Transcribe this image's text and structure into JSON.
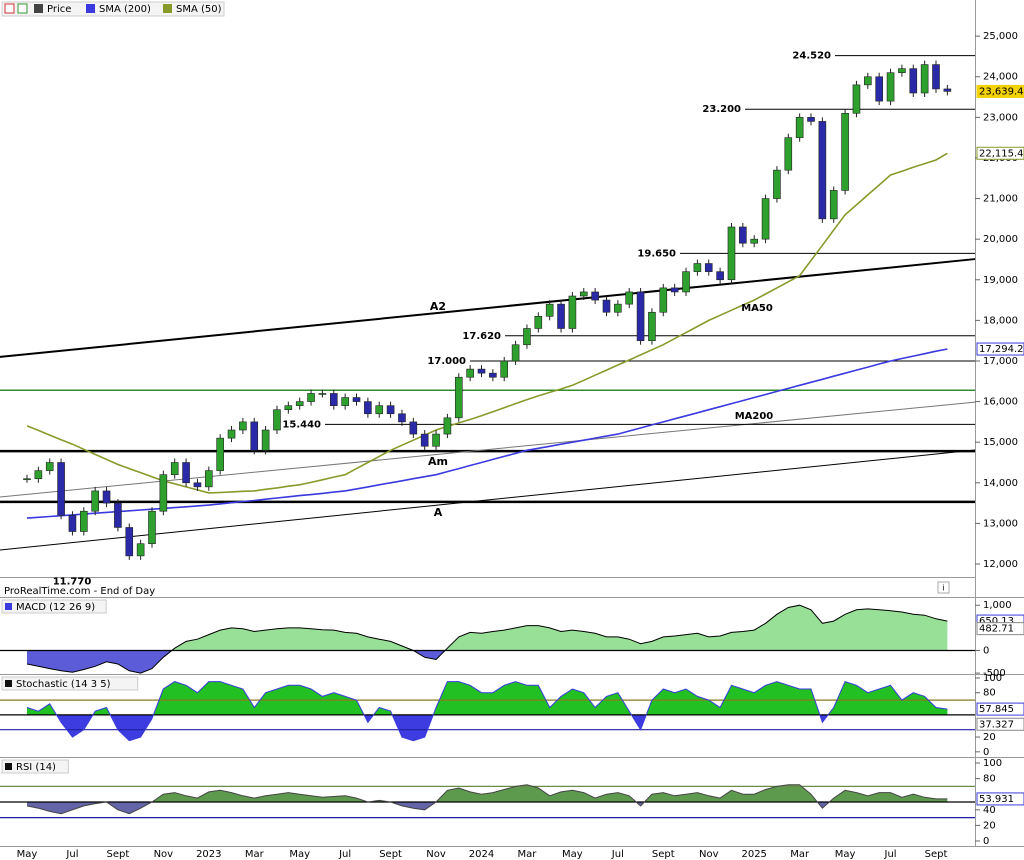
{
  "chart_data": [
    {
      "type": "candlestick",
      "name": "Price",
      "up_color": "#2ea02e",
      "down_color": "#2a2aa8",
      "categories": [
        "May",
        null,
        null,
        null,
        "Jul",
        null,
        null,
        null,
        "Sept",
        null,
        null,
        null,
        "Nov",
        null,
        null,
        null,
        "2023",
        null,
        null,
        null,
        "Mar",
        null,
        null,
        null,
        "May",
        null,
        null,
        null,
        "Jul",
        null,
        null,
        null,
        "Sept",
        null,
        null,
        null,
        "Nov",
        null,
        null,
        null,
        "2024",
        null,
        null,
        null,
        "Mar",
        null,
        null,
        null,
        "May",
        null,
        null,
        null,
        "Jul",
        null,
        null,
        null,
        "Sept",
        null,
        null,
        null,
        "Nov",
        null,
        null,
        null,
        "2025",
        null,
        null,
        null,
        "Mar",
        null,
        null,
        null,
        "May",
        null,
        null,
        null,
        "Jul",
        null,
        null,
        null,
        "Sept",
        null
      ],
      "values": [
        14100,
        14300,
        14500,
        13200,
        12800,
        13300,
        13800,
        13500,
        12900,
        12200,
        12500,
        13300,
        14200,
        14500,
        14000,
        13900,
        14300,
        15100,
        15300,
        15500,
        14800,
        15300,
        15800,
        15900,
        16000,
        16200,
        16200,
        15900,
        16100,
        16000,
        15700,
        15900,
        15700,
        15500,
        15200,
        14900,
        15200,
        15600,
        16600,
        16800,
        16700,
        16600,
        17000,
        17400,
        17800,
        18100,
        18400,
        17800,
        18600,
        18700,
        18500,
        18200,
        18400,
        18700,
        17500,
        18200,
        18800,
        18700,
        19200,
        19400,
        19200,
        19000,
        20300,
        19900,
        20000,
        21000,
        21700,
        22500,
        23000,
        22900,
        20500,
        21200,
        23100,
        23800,
        24000,
        23400,
        24100,
        24200,
        23600,
        24300,
        23700,
        23639.41
      ],
      "last_label": "23,639.41",
      "series": [
        {
          "name": "SMA (200)",
          "color": "#3a3adf",
          "last_label": "17,294.28",
          "values": [
            13130,
            13150,
            13170,
            13190,
            13210,
            13230,
            13250,
            13270,
            13290,
            13310,
            13330,
            13350,
            13370,
            13390,
            13410,
            13430,
            13450,
            13480,
            13510,
            13540,
            13565,
            13595,
            13625,
            13655,
            13685,
            13710,
            13740,
            13770,
            13800,
            13850,
            13900,
            13950,
            14000,
            14050,
            14100,
            14150,
            14200,
            14275,
            14350,
            14425,
            14500,
            14575,
            14650,
            14725,
            14800,
            14850,
            14900,
            14950,
            15000,
            15050,
            15100,
            15150,
            15200,
            15275,
            15350,
            15425,
            15500,
            15575,
            15650,
            15725,
            15800,
            15875,
            15950,
            16025,
            16100,
            16175,
            16250,
            16325,
            16400,
            16475,
            16550,
            16625,
            16700,
            16775,
            16850,
            16925,
            17000,
            17060,
            17120,
            17180,
            17240,
            17294.28
          ]
        },
        {
          "name": "SMA (50)",
          "color": "#8a9a2a",
          "last_label": "22,115.42",
          "values": [
            15400,
            15290,
            15175,
            15060,
            14950,
            14825,
            14700,
            14575,
            14450,
            14350,
            14250,
            14150,
            14050,
            13975,
            13900,
            13825,
            13750,
            13760,
            13775,
            13790,
            13800,
            13840,
            13875,
            13915,
            13950,
            14010,
            14075,
            14140,
            14200,
            14350,
            14500,
            14650,
            14800,
            14925,
            15050,
            15175,
            15300,
            15390,
            15475,
            15560,
            15650,
            15750,
            15850,
            15950,
            16050,
            16140,
            16225,
            16310,
            16400,
            16525,
            16650,
            16775,
            16900,
            17025,
            17150,
            17275,
            17400,
            17550,
            17700,
            17850,
            18000,
            18125,
            18250,
            18375,
            18500,
            18650,
            18800,
            18950,
            19100,
            19475,
            19850,
            20225,
            20600,
            20845,
            21090,
            21335,
            21580,
            21675,
            21770,
            21860,
            21950,
            22115.42
          ]
        }
      ],
      "ylim": [
        11680,
        25890
      ],
      "yticks": [
        {
          "value": 12000,
          "label": "12,000"
        },
        {
          "value": 13000,
          "label": "13,000"
        },
        {
          "value": 14000,
          "label": "14,000"
        },
        {
          "value": 15000,
          "label": "15,000"
        },
        {
          "value": 16000,
          "label": "16,000"
        },
        {
          "value": 17000,
          "label": "17,000"
        },
        {
          "value": 18000,
          "label": "18,000"
        },
        {
          "value": 19000,
          "label": "19,000"
        },
        {
          "value": 20000,
          "label": "20,000"
        },
        {
          "value": 21000,
          "label": "21,000"
        },
        {
          "value": 22000,
          "label": "22,000"
        },
        {
          "value": 23000,
          "label": "23,000"
        },
        {
          "value": 24000,
          "label": "24,000"
        },
        {
          "value": 25000,
          "label": "25,000"
        }
      ],
      "levels": [
        {
          "value": 24520,
          "label": "24.520"
        },
        {
          "value": 23200,
          "label": "23.200"
        },
        {
          "value": 19650,
          "label": "19.650"
        },
        {
          "value": 17620,
          "label": "17.620"
        },
        {
          "value": 17000,
          "label": "17.000"
        },
        {
          "value": 15440,
          "label": "15.440"
        }
      ],
      "low_mark": {
        "value": 11770,
        "label": "11.770"
      },
      "support_lines": [
        {
          "value": 16280,
          "color": "#2e8b2e"
        },
        {
          "value": 14780,
          "label": "Am",
          "color": "#000000"
        },
        {
          "value": 13530,
          "label": "A",
          "color": "#000000"
        }
      ],
      "trendlines": [
        {
          "label": "A2",
          "start": 17100,
          "end": 19510,
          "color": "#000000"
        },
        {
          "start": 12345,
          "end": 14807,
          "color": "#000000"
        },
        {
          "start": 13650,
          "end": 15988,
          "color": "#777777"
        }
      ],
      "annotations": [
        {
          "text": "MA50",
          "color": "#d03030"
        },
        {
          "text": "MA200",
          "color": "#3a3adf"
        }
      ],
      "footer": "ProRealTime.com - End of Day"
    },
    {
      "type": "macd",
      "name": "MACD (12 26 9)",
      "color": "#000000",
      "up_color": "#98e098",
      "down_color": "#5c5cd8",
      "values": [
        -300,
        -350,
        -400,
        -450,
        -480,
        -420,
        -350,
        -250,
        -300,
        -450,
        -500,
        -400,
        -150,
        50,
        200,
        250,
        350,
        450,
        500,
        480,
        420,
        450,
        480,
        500,
        500,
        480,
        460,
        450,
        400,
        380,
        300,
        250,
        200,
        100,
        0,
        -150,
        -200,
        50,
        300,
        400,
        380,
        420,
        450,
        500,
        550,
        550,
        500,
        420,
        450,
        420,
        380,
        300,
        300,
        250,
        150,
        200,
        300,
        320,
        350,
        380,
        300,
        320,
        400,
        420,
        450,
        600,
        800,
        950,
        1000,
        900,
        600,
        650,
        800,
        900,
        920,
        900,
        880,
        850,
        800,
        780,
        700,
        650.13
      ],
      "signal_last": 482.71,
      "ylim": [
        -520,
        1160
      ],
      "yticks": [
        {
          "value": 1000,
          "label": "1,000"
        },
        0,
        -500
      ]
    },
    {
      "type": "oscillator",
      "name": "Stochastic (14 3 5)",
      "color": "#3a3adf",
      "up_color": "#22c022",
      "down_color": "#3c3ce0",
      "values": [
        60,
        55,
        65,
        40,
        20,
        30,
        55,
        60,
        30,
        15,
        20,
        45,
        85,
        95,
        90,
        80,
        95,
        95,
        90,
        85,
        60,
        80,
        85,
        90,
        90,
        85,
        75,
        80,
        75,
        70,
        40,
        60,
        55,
        20,
        15,
        20,
        60,
        95,
        95,
        90,
        80,
        80,
        90,
        95,
        90,
        90,
        60,
        75,
        85,
        80,
        60,
        75,
        80,
        55,
        30,
        70,
        85,
        80,
        85,
        75,
        70,
        60,
        90,
        85,
        80,
        90,
        95,
        90,
        85,
        85,
        40,
        60,
        95,
        90,
        80,
        85,
        90,
        70,
        80,
        75,
        60,
        57.845
      ],
      "d_last": 37.327,
      "fill_base": 50,
      "levels": [
        {
          "value": 70,
          "color": "#8a7a20"
        },
        {
          "value": 30,
          "color": "#2020a0"
        }
      ],
      "ylim": [
        -7,
        104
      ],
      "yticks": [
        0,
        20,
        80,
        100
      ]
    },
    {
      "type": "oscillator",
      "name": "RSI (14)",
      "color": "#444444",
      "up_color": "#5e9a4e",
      "down_color": "#6464a8",
      "values": [
        45,
        42,
        38,
        35,
        40,
        45,
        48,
        50,
        40,
        35,
        42,
        50,
        60,
        62,
        58,
        55,
        63,
        65,
        62,
        58,
        55,
        58,
        60,
        62,
        60,
        58,
        56,
        57,
        58,
        55,
        50,
        52,
        50,
        45,
        42,
        40,
        50,
        65,
        68,
        63,
        60,
        62,
        66,
        70,
        72,
        68,
        58,
        63,
        65,
        62,
        55,
        60,
        62,
        58,
        45,
        60,
        62,
        58,
        60,
        62,
        58,
        55,
        65,
        60,
        60,
        66,
        70,
        72,
        72,
        60,
        42,
        55,
        65,
        62,
        58,
        62,
        62,
        56,
        60,
        56,
        54,
        53.931
      ],
      "fill_base": 50,
      "levels": [
        {
          "value": 70,
          "color": "#6a8a4a"
        },
        {
          "value": 30,
          "color": "#2020a0"
        }
      ],
      "ylim": [
        -6.4,
        106.4
      ],
      "yticks": [
        0,
        20,
        40,
        80,
        100
      ]
    }
  ]
}
